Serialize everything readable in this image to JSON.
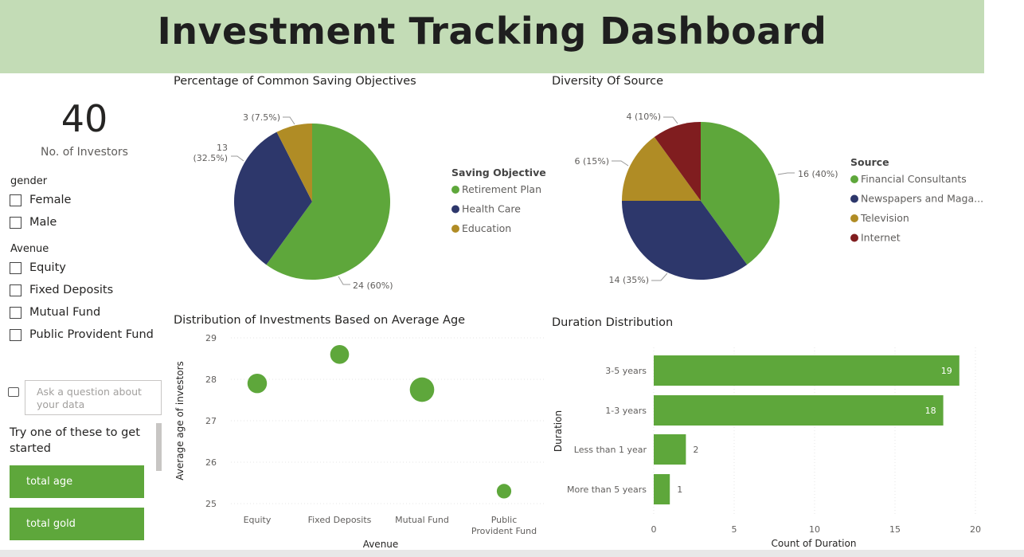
{
  "header": {
    "title": "Investment Tracking Dashboard"
  },
  "kpi": {
    "value": "40",
    "label": "No. of Investors"
  },
  "slicers": {
    "gender": {
      "title": "gender",
      "options": [
        "Female",
        "Male"
      ]
    },
    "avenue": {
      "title": "Avenue",
      "options": [
        "Equity",
        "Fixed Deposits",
        "Mutual Fund",
        "Public Provident Fund"
      ]
    }
  },
  "qa": {
    "placeholder": "Ask a question about your data",
    "try_label": "Try one of these to get started",
    "suggestions": [
      "total age",
      "total gold"
    ]
  },
  "colors": {
    "green": "#5ea73b",
    "navy": "#2d376b",
    "gold": "#b08c25",
    "maroon": "#801d1f"
  },
  "chart_data": [
    {
      "type": "pie",
      "title": "Percentage of Common Saving Objectives",
      "legend_title": "Saving Objective",
      "legend_position": "right",
      "slices": [
        {
          "name": "Retirement Plan",
          "value": 24,
          "label": "24 (60%)",
          "color": "#5ea73b"
        },
        {
          "name": "Health Care",
          "value": 13,
          "label_lines": [
            "13",
            "(32.5%)"
          ],
          "color": "#2d376b"
        },
        {
          "name": "Education",
          "value": 3,
          "label": "3 (7.5%)",
          "color": "#b08c25"
        }
      ]
    },
    {
      "type": "pie",
      "title": "Diversity Of Source",
      "legend_title": "Source",
      "legend_position": "right",
      "slices": [
        {
          "name": "Financial Consultants",
          "legend": "Financial Consultants",
          "value": 16,
          "label": "16 (40%)",
          "color": "#5ea73b"
        },
        {
          "name": "Newspapers and Magazines",
          "legend": "Newspapers and Maga...",
          "value": 14,
          "label": "14 (35%)",
          "color": "#2d376b"
        },
        {
          "name": "Television",
          "legend": "Television",
          "value": 6,
          "label": "6 (15%)",
          "color": "#b08c25"
        },
        {
          "name": "Internet",
          "legend": "Internet",
          "value": 4,
          "label": "4 (10%)",
          "color": "#801d1f"
        }
      ]
    },
    {
      "type": "scatter",
      "title": "Distribution of Investments Based on Average Age",
      "xlabel": "Avenue",
      "ylabel": "Average age of investors",
      "ylim": [
        25,
        29
      ],
      "yticks": [
        25,
        26,
        27,
        28,
        29
      ],
      "categories": [
        {
          "lines": [
            "Equity"
          ]
        },
        {
          "lines": [
            "Fixed Deposits"
          ]
        },
        {
          "lines": [
            "Mutual Fund"
          ]
        },
        {
          "lines": [
            "Public",
            "Provident Fund"
          ]
        }
      ],
      "points": [
        {
          "category": "Equity",
          "y": 27.9,
          "size": 8
        },
        {
          "category": "Fixed Deposits",
          "y": 28.6,
          "size": 7
        },
        {
          "category": "Mutual Fund",
          "y": 27.75,
          "size": 18
        },
        {
          "category": "Public Provident Fund",
          "y": 25.3,
          "size": 2
        }
      ],
      "color": "#5ea73b"
    },
    {
      "type": "bar",
      "orientation": "horizontal",
      "title": "Duration Distribution",
      "xlabel": "Count of Duration",
      "ylabel": "Duration",
      "xlim": [
        0,
        20
      ],
      "xticks": [
        0,
        5,
        10,
        15,
        20
      ],
      "categories": [
        "3-5 years",
        "1-3 years",
        "Less than 1 year",
        "More than 5 years"
      ],
      "values": [
        19,
        18,
        2,
        1
      ],
      "color": "#5ea73b"
    }
  ]
}
